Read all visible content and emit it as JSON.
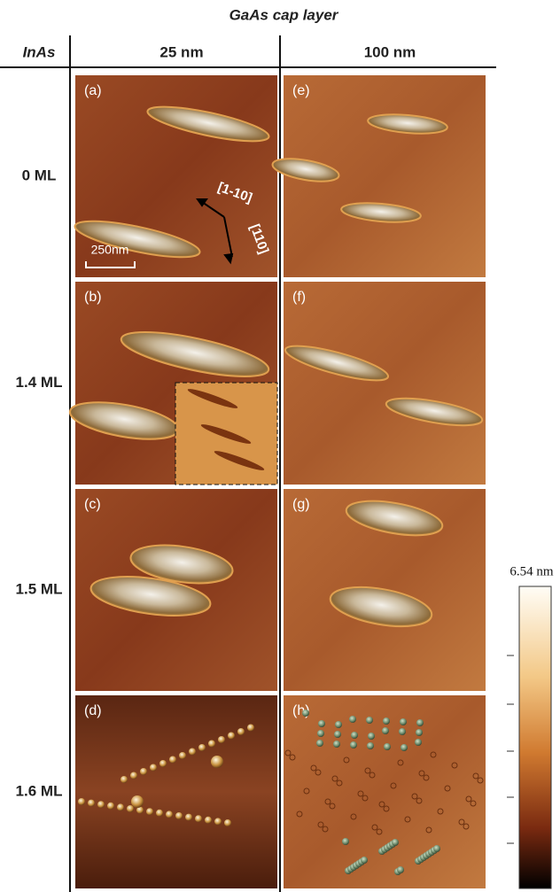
{
  "header": {
    "title": "GaAs cap layer"
  },
  "columns": {
    "row_header": "InAs",
    "items": [
      "25 nm",
      "100 nm"
    ]
  },
  "rows": [
    "0 ML",
    "1.4 ML",
    "1.5 ML",
    "1.6 ML"
  ],
  "panels": [
    "(a)",
    "(b)",
    "(c)",
    "(d)",
    "(e)",
    "(f)",
    "(g)",
    "(h)"
  ],
  "annotations": {
    "direction_1": "[1-10]",
    "direction_2": "[110]",
    "scale_bar": "250nm"
  },
  "colorbar": {
    "max_label": "6.54 nm"
  }
}
